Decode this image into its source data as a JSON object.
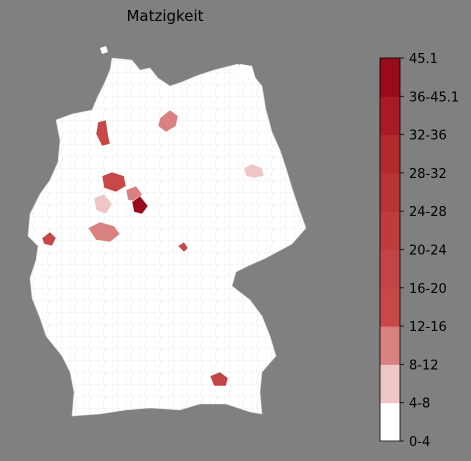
{
  "title": "Matzigkeit",
  "colorbar": {
    "max_label": "45.1",
    "ticks": [
      "0-4",
      "4-8",
      "8-12",
      "12-16",
      "16-20",
      "20-24",
      "24-28",
      "28-32",
      "32-36",
      "36-45.1"
    ],
    "colors": [
      "#ffffff",
      "#eec6c6",
      "#d98080",
      "#c84848",
      "#c24444",
      "#bf3c3c",
      "#b93434",
      "#b22a2a",
      "#a81a25",
      "#980a1c"
    ]
  },
  "map": {
    "base_color": "#ffffff",
    "border_color": "#d9d9d9",
    "highlighted_regions": [
      {
        "id": "northwest-coast",
        "bin": 3
      },
      {
        "id": "hamburg-area",
        "bin": 2
      },
      {
        "id": "brandenburg-east",
        "bin": 1
      },
      {
        "id": "osnabrueck-area",
        "bin": 3
      },
      {
        "id": "bielefeld-area",
        "bin": 2
      },
      {
        "id": "detmold-area",
        "bin": 9
      },
      {
        "id": "muenster-area",
        "bin": 1
      },
      {
        "id": "ruhr-area",
        "bin": 2
      },
      {
        "id": "aachen-area",
        "bin": 3
      },
      {
        "id": "thuringia-spot",
        "bin": 3
      },
      {
        "id": "upper-bavaria-east",
        "bin": 4
      }
    ]
  }
}
